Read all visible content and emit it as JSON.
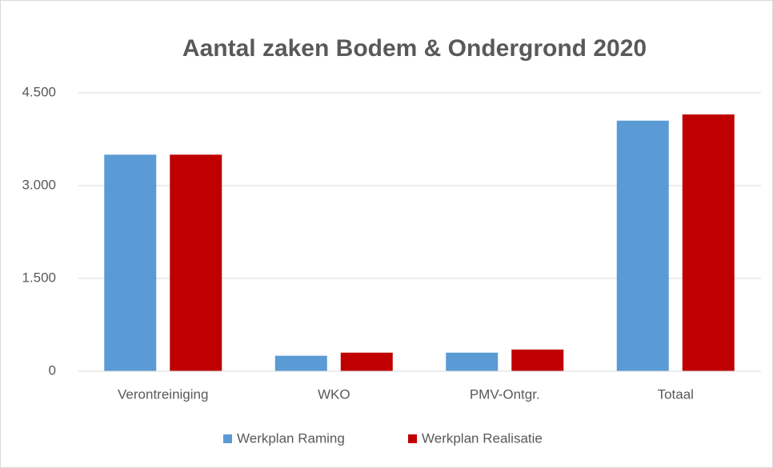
{
  "chart_data": {
    "type": "bar",
    "title": "Aantal zaken Bodem & Ondergrond 2020",
    "categories": [
      "Verontreiniging",
      "WKO",
      "PMV-Ontgr.",
      "Totaal"
    ],
    "series": [
      {
        "name": "Werkplan Raming",
        "color": "#5b9bd5",
        "values": [
          3500,
          250,
          300,
          4050
        ]
      },
      {
        "name": "Werkplan Realisatie",
        "color": "#c00000",
        "values": [
          3500,
          300,
          350,
          4150
        ]
      }
    ],
    "ylim": [
      0,
      4500
    ],
    "yticks": [
      0,
      {
        "value": 1500,
        "label": "1.500"
      },
      {
        "value": 3000,
        "label": "3.000"
      },
      {
        "value": 4500,
        "label": "4.500"
      }
    ],
    "grid": true,
    "legend": "bottom"
  }
}
